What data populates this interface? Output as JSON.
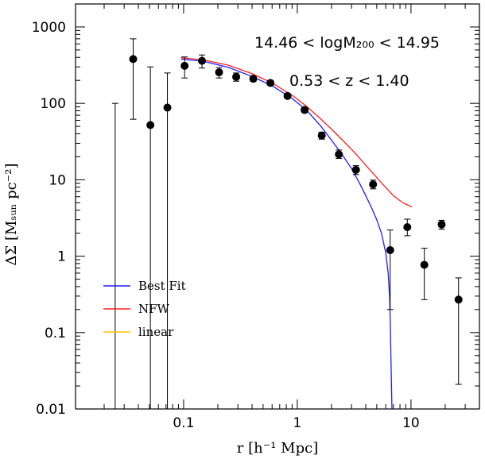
{
  "chart_data": {
    "type": "scatter",
    "xlabel": "r [h⁻¹ Mpc]",
    "ylabel": "ΔΣ [Mₛᵤₙ pc⁻²]",
    "xscale": "log",
    "yscale": "log",
    "xlim": [
      0.0112,
      40
    ],
    "ylim": [
      0.01,
      2000
    ],
    "x_ticks": [
      {
        "value": 0.1,
        "label": "0.1"
      },
      {
        "value": 1,
        "label": "1"
      },
      {
        "value": 10,
        "label": "10"
      }
    ],
    "y_ticks": [
      {
        "value": 0.01,
        "label": "0.01"
      },
      {
        "value": 0.1,
        "label": "0.1"
      },
      {
        "value": 1,
        "label": "1"
      },
      {
        "value": 10,
        "label": "10"
      },
      {
        "value": 100,
        "label": "100"
      },
      {
        "value": 1000,
        "label": "1000"
      }
    ],
    "annotations": [
      "14.46 < logM₂₀₀ < 14.95",
      "0.53 < z < 1.40"
    ],
    "legend_placement": "lower-left",
    "series": [
      {
        "name": "data",
        "kind": "points",
        "color": "#000000",
        "points": [
          {
            "x": 0.025,
            "y": null,
            "ylo": 0.01,
            "yhi": 100
          },
          {
            "x": 0.036,
            "y": 380,
            "ylo": 62,
            "yhi": 700
          },
          {
            "x": 0.051,
            "y": 52,
            "ylo": 0.01,
            "yhi": 300
          },
          {
            "x": 0.072,
            "y": 88,
            "ylo": 0.01,
            "yhi": 250
          },
          {
            "x": 0.102,
            "y": 310,
            "ylo": 215,
            "yhi": 405
          },
          {
            "x": 0.145,
            "y": 360,
            "ylo": 290,
            "yhi": 430
          },
          {
            "x": 0.205,
            "y": 255,
            "ylo": 215,
            "yhi": 295
          },
          {
            "x": 0.29,
            "y": 222,
            "ylo": 195,
            "yhi": 250
          },
          {
            "x": 0.41,
            "y": 210,
            "ylo": 195,
            "yhi": 225
          },
          {
            "x": 0.58,
            "y": 185,
            "ylo": 172,
            "yhi": 198
          },
          {
            "x": 0.82,
            "y": 125,
            "ylo": 117,
            "yhi": 133
          },
          {
            "x": 1.16,
            "y": 82,
            "ylo": 76,
            "yhi": 88
          },
          {
            "x": 1.64,
            "y": 38,
            "ylo": 34,
            "yhi": 42
          },
          {
            "x": 2.32,
            "y": 21.5,
            "ylo": 19,
            "yhi": 24.5
          },
          {
            "x": 3.28,
            "y": 13.5,
            "ylo": 11.7,
            "yhi": 15.3
          },
          {
            "x": 4.64,
            "y": 8.7,
            "ylo": 7.6,
            "yhi": 9.9
          },
          {
            "x": 6.56,
            "y": 1.2,
            "ylo": 0.2,
            "yhi": 2.2
          },
          {
            "x": 9.28,
            "y": 2.4,
            "ylo": 1.85,
            "yhi": 3.05
          },
          {
            "x": 13.1,
            "y": 0.77,
            "ylo": 0.27,
            "yhi": 1.27
          },
          {
            "x": 18.6,
            "y": 2.6,
            "ylo": 2.25,
            "yhi": 2.95
          },
          {
            "x": 26.2,
            "y": 0.27,
            "ylo": 0.021,
            "yhi": 0.52
          }
        ]
      },
      {
        "name": "Best Fit",
        "kind": "line",
        "color": "#1c1cff",
        "x": [
          0.095,
          0.15,
          0.25,
          0.4,
          0.6,
          0.9,
          1.2,
          1.6,
          2.0,
          2.5,
          3.0,
          3.5,
          4.0,
          4.5,
          5.0,
          5.5,
          6.0,
          6.3,
          6.5,
          6.6,
          6.7,
          6.8
        ],
        "y": [
          380,
          355,
          295,
          225,
          170,
          116,
          82,
          51,
          33,
          21,
          14,
          9.2,
          6.2,
          4.3,
          3.0,
          2.0,
          1.1,
          0.6,
          0.28,
          0.1,
          0.03,
          0.01
        ]
      },
      {
        "name": "NFW",
        "kind": "line",
        "color": "#ff2020",
        "x": [
          0.095,
          0.15,
          0.25,
          0.4,
          0.6,
          0.9,
          1.2,
          1.6,
          2.0,
          2.5,
          3.0,
          3.5,
          4.0,
          5.0,
          6.0,
          7.0,
          8.5,
          10.2
        ],
        "y": [
          395,
          370,
          315,
          245,
          185,
          128,
          92,
          63,
          46,
          33,
          25,
          19.5,
          15.5,
          10.7,
          7.9,
          6.2,
          5.0,
          4.4
        ]
      },
      {
        "name": "linear",
        "kind": "line",
        "color": "#ffbf00",
        "x": [],
        "y": []
      }
    ]
  }
}
